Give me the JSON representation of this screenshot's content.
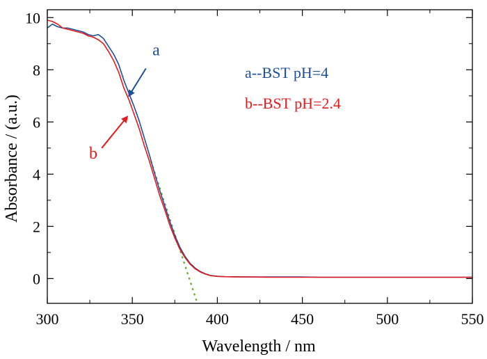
{
  "chart_data": {
    "type": "line",
    "xlabel": "Wavelength / nm",
    "ylabel": "Absorbance / (a.u.)",
    "xlim": [
      300,
      550
    ],
    "ylim": [
      -0.95,
      10.3
    ],
    "xticks": [
      300,
      350,
      400,
      450,
      500,
      550
    ],
    "yticks": [
      0,
      2,
      4,
      6,
      8,
      10
    ],
    "xtick_labels": [
      "300",
      "350",
      "400",
      "450",
      "500",
      "550"
    ],
    "ytick_labels": [
      "0",
      "2",
      "4",
      "6",
      "8",
      "10"
    ],
    "grid": false,
    "legend_position": "top-right",
    "series": [
      {
        "name": "a--BST pH=4",
        "color": "#1f4e9a",
        "x": [
          300,
          303,
          306,
          309,
          312,
          315,
          318,
          321,
          324,
          327,
          330,
          333,
          336,
          339,
          342,
          345,
          348,
          351,
          354,
          357,
          360,
          363,
          366,
          369,
          372,
          375,
          378,
          381,
          384,
          387,
          390,
          393,
          396,
          400,
          405,
          410,
          420,
          430,
          440,
          450,
          460,
          480,
          500,
          520,
          540,
          550
        ],
        "y": [
          9.6,
          9.75,
          9.65,
          9.6,
          9.6,
          9.55,
          9.5,
          9.45,
          9.35,
          9.3,
          9.35,
          9.2,
          8.9,
          8.6,
          8.2,
          7.6,
          7.1,
          6.6,
          6.05,
          5.4,
          4.75,
          4.05,
          3.4,
          2.8,
          2.2,
          1.65,
          1.2,
          0.85,
          0.58,
          0.4,
          0.27,
          0.18,
          0.12,
          0.09,
          0.07,
          0.07,
          0.06,
          0.06,
          0.06,
          0.06,
          0.05,
          0.05,
          0.05,
          0.05,
          0.05,
          0.05
        ]
      },
      {
        "name": "b--BST pH=2.4",
        "color": "#e41a1c",
        "x": [
          300,
          303,
          306,
          309,
          312,
          315,
          318,
          321,
          324,
          327,
          330,
          333,
          336,
          339,
          342,
          345,
          348,
          351,
          354,
          357,
          360,
          363,
          366,
          369,
          372,
          375,
          378,
          381,
          384,
          387,
          390,
          393,
          396,
          400,
          405,
          410,
          420,
          430,
          440,
          450,
          460,
          480,
          500,
          520,
          540,
          550
        ],
        "y": [
          9.9,
          9.85,
          9.75,
          9.6,
          9.55,
          9.5,
          9.45,
          9.4,
          9.3,
          9.25,
          9.15,
          9.0,
          8.7,
          8.35,
          7.9,
          7.3,
          6.85,
          6.3,
          5.75,
          5.1,
          4.5,
          3.85,
          3.2,
          2.65,
          2.05,
          1.55,
          1.12,
          0.8,
          0.55,
          0.37,
          0.25,
          0.17,
          0.11,
          0.08,
          0.07,
          0.06,
          0.06,
          0.05,
          0.05,
          0.05,
          0.05,
          0.05,
          0.05,
          0.05,
          0.05,
          0.05
        ]
      }
    ],
    "tangent_line": {
      "color": "#6aaa2a",
      "x": [
        361,
        388
      ],
      "y": [
        4.5,
        -0.9
      ]
    },
    "legend": [
      {
        "text": "a--BST pH=4",
        "color": "#1f4e9a"
      },
      {
        "text": "b--BST pH=2.4",
        "color": "#e41a1c"
      }
    ],
    "annotations": [
      {
        "label": "a",
        "color": "#1f4e9a",
        "label_at": [
          364,
          8.55
        ],
        "arrow_from": [
          358,
          8.05
        ],
        "arrow_to": [
          348,
          7.0
        ]
      },
      {
        "label": "b",
        "color": "#e41a1c",
        "label_at": [
          327,
          4.6
        ],
        "arrow_from": [
          332,
          5.0
        ],
        "arrow_to": [
          347,
          6.2
        ]
      }
    ]
  }
}
